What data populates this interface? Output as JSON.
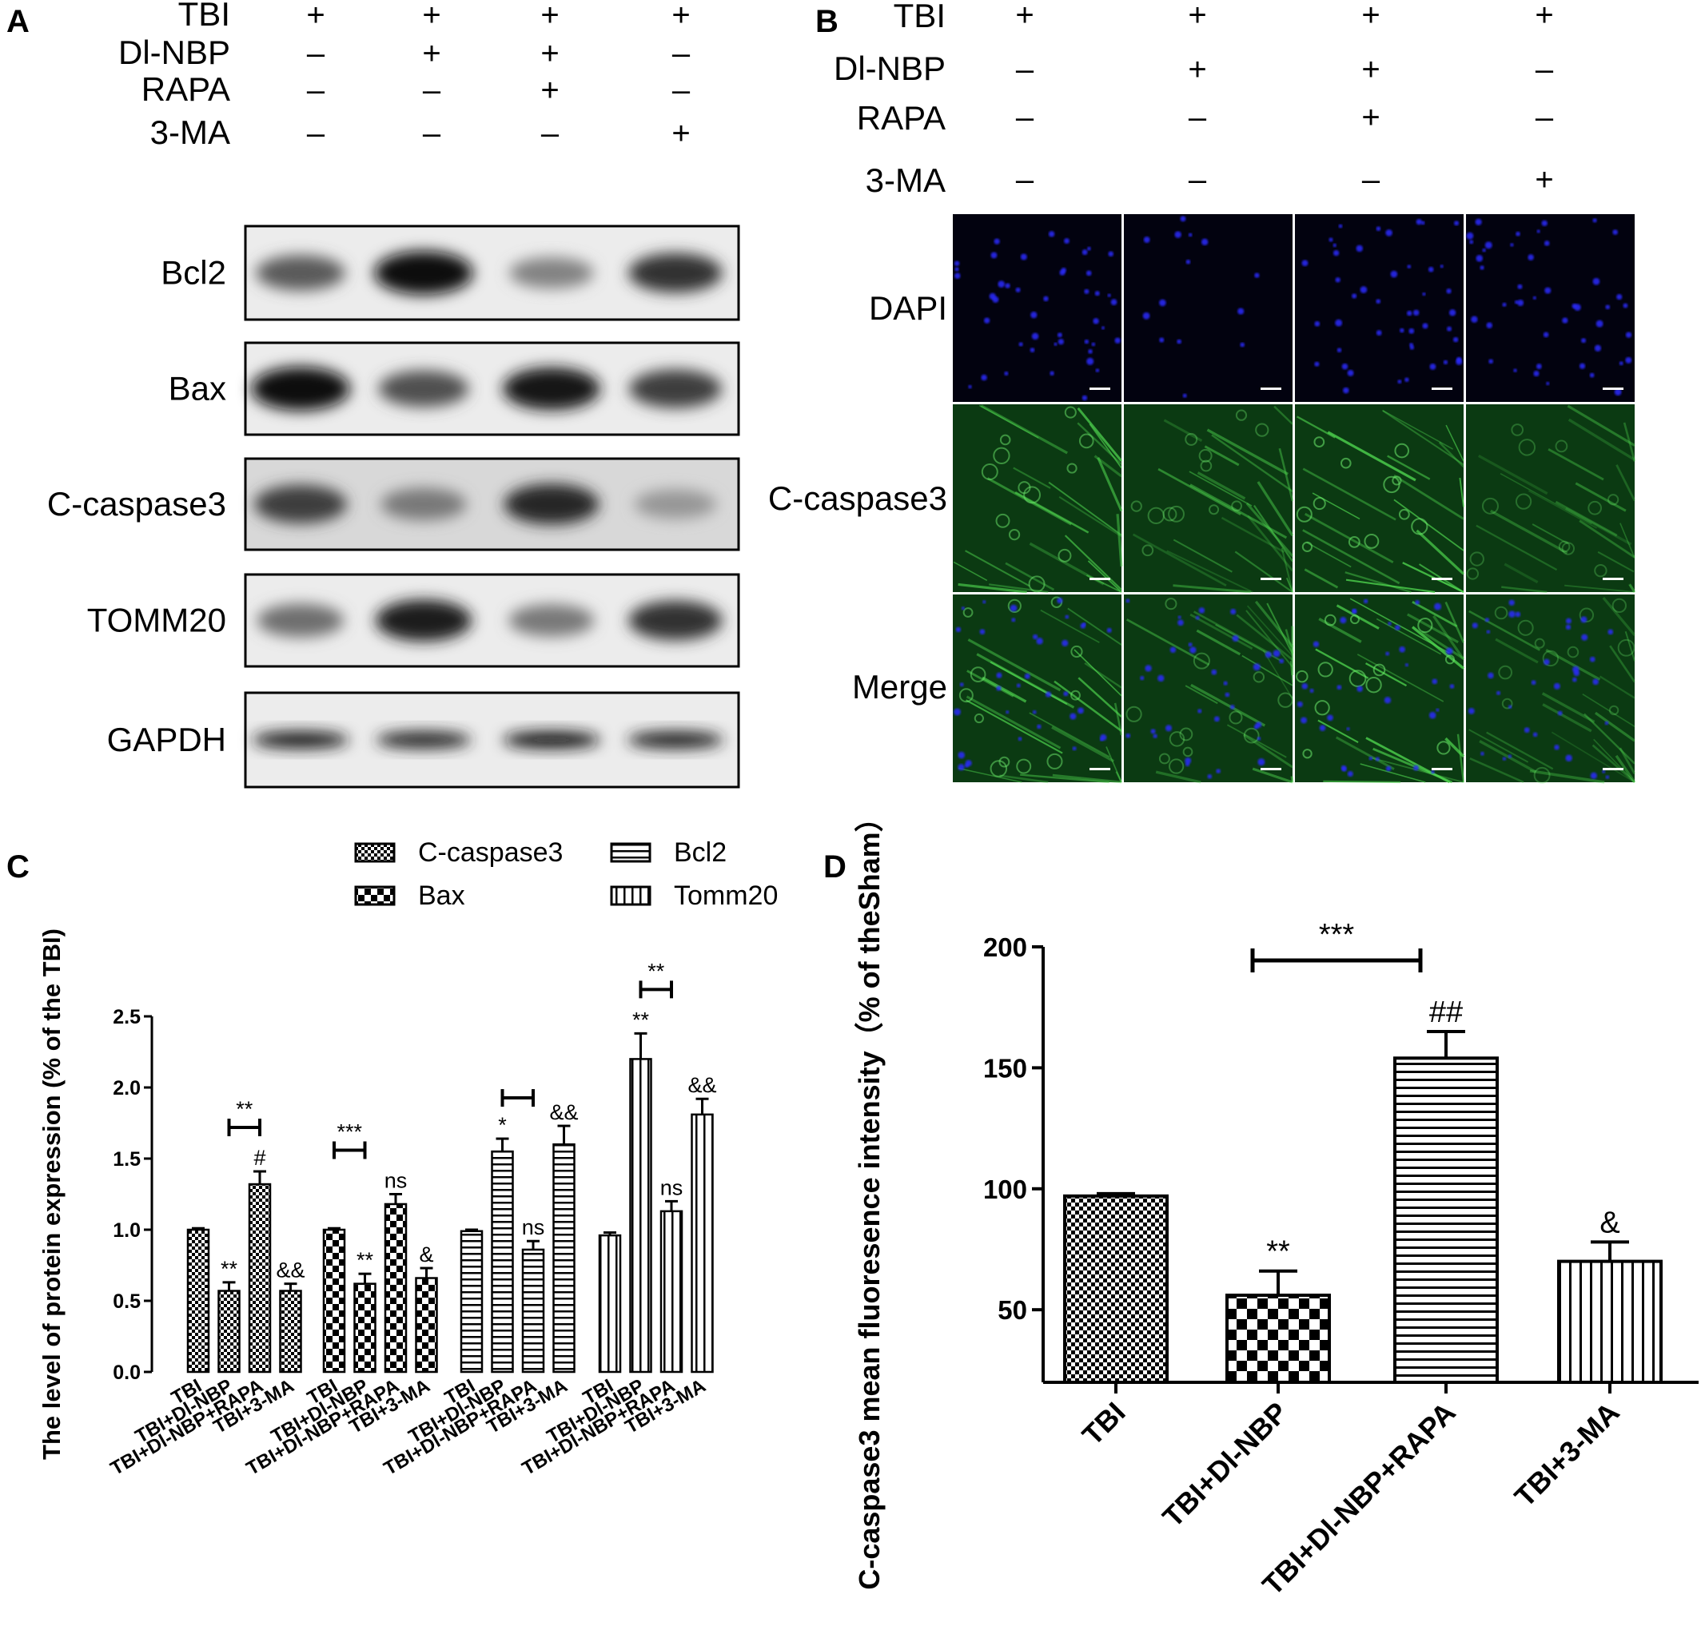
{
  "panels": {
    "A": {
      "letter": "A",
      "conditions": [
        {
          "label": "TBI",
          "signs": [
            "+",
            "+",
            "+",
            "+"
          ]
        },
        {
          "label": "Dl-NBP",
          "signs": [
            "–",
            "+",
            "+",
            "–"
          ]
        },
        {
          "label": "RAPA",
          "signs": [
            "–",
            "–",
            "+",
            "–"
          ]
        },
        {
          "label": "3-MA",
          "signs": [
            "–",
            "–",
            "–",
            "+"
          ]
        }
      ],
      "blots": [
        {
          "label": "Bcl2",
          "band_intensity": [
            0.55,
            0.95,
            0.35,
            0.75
          ]
        },
        {
          "label": "Bax",
          "band_intensity": [
            0.95,
            0.6,
            0.9,
            0.7
          ]
        },
        {
          "label": "C-caspase3",
          "band_intensity": [
            0.7,
            0.4,
            0.8,
            0.25
          ]
        },
        {
          "label": "TOMM20",
          "band_intensity": [
            0.45,
            0.85,
            0.4,
            0.75
          ]
        },
        {
          "label": "GAPDH",
          "band_intensity": [
            0.85,
            0.8,
            0.88,
            0.82
          ]
        }
      ]
    },
    "B": {
      "letter": "B",
      "conditions": [
        {
          "label": "TBI",
          "signs": [
            "+",
            "+",
            "+",
            "+"
          ]
        },
        {
          "label": "Dl-NBP",
          "signs": [
            "–",
            "+",
            "+",
            "–"
          ]
        },
        {
          "label": "RAPA",
          "signs": [
            "–",
            "–",
            "+",
            "–"
          ]
        },
        {
          "label": "3-MA",
          "signs": [
            "–",
            "–",
            "–",
            "+"
          ]
        }
      ],
      "rows": [
        {
          "label": "DAPI",
          "color": "#1a1aff",
          "background": "#02020f"
        },
        {
          "label": "C-caspase3",
          "color": "#3fc83f",
          "background": "#0b3a12"
        },
        {
          "label": "Merge",
          "color": "#3fc83f",
          "background": "#0b3a12"
        }
      ],
      "green_intensity": [
        0.85,
        0.6,
        0.95,
        0.5
      ]
    },
    "C": {
      "letter": "C"
    },
    "D": {
      "letter": "D"
    }
  },
  "chart_data": [
    {
      "panel": "C",
      "type": "bar",
      "ylabel": "The level of protein expression (% of the TBI)",
      "ylim": [
        0,
        2.5
      ],
      "yticks": [
        "0.0",
        "0.5",
        "1.0",
        "1.5",
        "2.0",
        "2.5"
      ],
      "legend_position": "top",
      "categories": [
        "TBI",
        "TBI+Dl-NBP",
        "TBI+Dl-NBP+RAPA",
        "TBI+3-MA"
      ],
      "series": [
        {
          "name": "C-caspase3",
          "pattern": "checker-fine",
          "values": [
            1.0,
            0.57,
            1.32,
            0.57
          ],
          "errors": [
            0.01,
            0.06,
            0.09,
            0.05
          ],
          "annotations": [
            "",
            "**",
            "#",
            "&&"
          ],
          "bracket": {
            "from": 1,
            "to": 2,
            "label": "**"
          }
        },
        {
          "name": "Bax",
          "pattern": "checker-coarse",
          "values": [
            1.0,
            0.62,
            1.18,
            0.66
          ],
          "errors": [
            0.01,
            0.07,
            0.07,
            0.07
          ],
          "annotations": [
            "",
            "**",
            "ns",
            "&"
          ],
          "bracket": {
            "from": 0,
            "to": 1,
            "label": "***"
          }
        },
        {
          "name": "Bcl2",
          "pattern": "horizontal",
          "values": [
            0.99,
            1.55,
            0.86,
            1.6
          ],
          "errors": [
            0.01,
            0.09,
            0.06,
            0.13
          ],
          "annotations": [
            "",
            "*",
            "ns",
            "&&"
          ],
          "bracket": {
            "from": 1,
            "to": 2,
            "label": ""
          }
        },
        {
          "name": "Tomm20",
          "pattern": "vertical",
          "values": [
            0.96,
            2.2,
            1.13,
            1.81
          ],
          "errors": [
            0.02,
            0.18,
            0.07,
            0.11
          ],
          "annotations": [
            "",
            "**",
            "ns",
            "&&"
          ],
          "bracket": {
            "from": 1,
            "to": 2,
            "label": "**"
          }
        }
      ]
    },
    {
      "panel": "D",
      "type": "bar",
      "ylabel": "C-caspase3 mean fluoresence intensity（% of theSham）",
      "ylim": [
        20,
        200
      ],
      "yticks": [
        "50",
        "100",
        "150",
        "200"
      ],
      "categories": [
        "TBI",
        "TBI+Dl-NBP",
        "TBI+Dl-NBP+RAPA",
        "TBI+3-MA"
      ],
      "values": [
        97,
        56,
        154,
        70
      ],
      "errors": [
        1,
        10,
        11,
        8
      ],
      "patterns": [
        "checker-fine",
        "checker-coarse",
        "horizontal",
        "vertical"
      ],
      "annotations": [
        "",
        "**",
        "##",
        "&"
      ],
      "bracket": {
        "from": 1,
        "to": 2,
        "label": "***"
      }
    }
  ]
}
